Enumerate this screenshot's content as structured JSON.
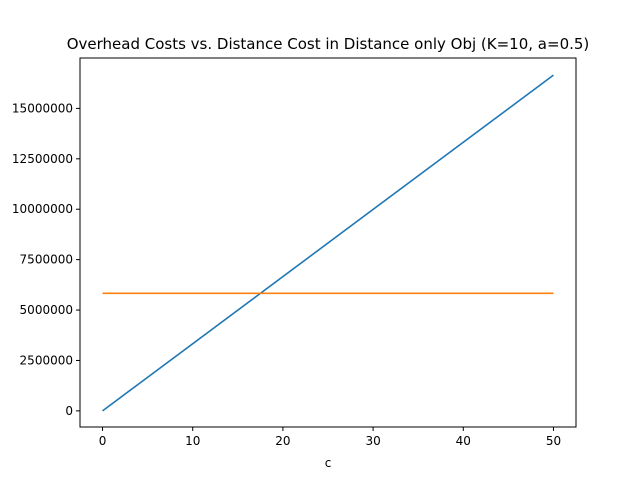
{
  "chart_data": {
    "type": "line",
    "title": "Overhead Costs vs. Distance Cost in Distance only Obj (K=10, a=0.5)",
    "xlabel": "c",
    "ylabel": "",
    "xlim": [
      -2.5,
      52.5
    ],
    "ylim": [
      -800000,
      17500000
    ],
    "xticks": [
      0,
      10,
      20,
      30,
      40,
      50
    ],
    "yticks": [
      0,
      2500000,
      5000000,
      7500000,
      10000000,
      12500000,
      15000000
    ],
    "xtick_labels": [
      "0",
      "10",
      "20",
      "30",
      "40",
      "50"
    ],
    "ytick_labels": [
      "0",
      "2500000",
      "5000000",
      "7500000",
      "10000000",
      "12500000",
      "15000000"
    ],
    "grid": false,
    "legend": "none",
    "series": [
      {
        "color": "#1f77b4",
        "x": [
          0,
          50
        ],
        "y": [
          0,
          16650000
        ]
      },
      {
        "color": "#ff7f0e",
        "x": [
          0,
          50
        ],
        "y": [
          5830000,
          5830000
        ]
      }
    ]
  }
}
